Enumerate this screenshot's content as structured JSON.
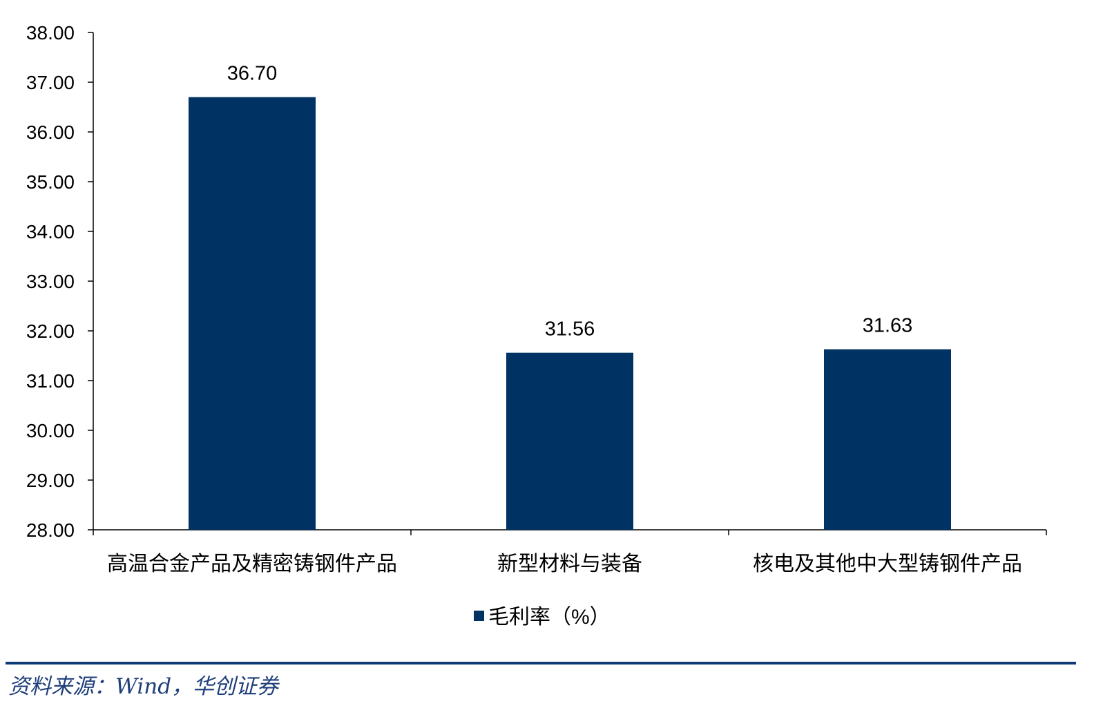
{
  "chart_data": {
    "type": "bar",
    "categories": [
      "高温合金产品及精密铸钢件产品",
      "新型材料与装备",
      "核电及其他中大型铸钢件产品"
    ],
    "series": [
      {
        "name": "毛利率（%）",
        "values": [
          36.7,
          31.56,
          31.63
        ],
        "color": "#003363"
      }
    ],
    "data_labels": [
      "36.70",
      "31.56",
      "31.63"
    ],
    "ylim": [
      28,
      38
    ],
    "yticks": [
      "28.00",
      "29.00",
      "30.00",
      "31.00",
      "32.00",
      "33.00",
      "34.00",
      "35.00",
      "36.00",
      "37.00",
      "38.00"
    ],
    "grid": false,
    "legend_position": "bottom-center"
  },
  "source": "资料来源：Wind，华创证券",
  "colors": {
    "bar": "#003363",
    "rule": "#0f3a78",
    "source_text": "#1f3f7a"
  }
}
